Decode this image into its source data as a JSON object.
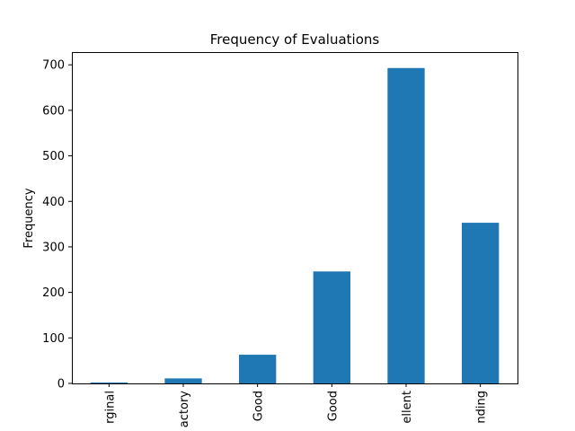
{
  "chart_data": {
    "type": "bar",
    "title": "Frequency of Evaluations",
    "xlabel": "",
    "ylabel": "Frequency",
    "categories": [
      "rginal",
      "actory",
      "Good",
      "Good",
      "ellent",
      "nding"
    ],
    "values": [
      2,
      11,
      63,
      246,
      693,
      353
    ],
    "ylim": [
      0,
      728
    ],
    "yticks": [
      0,
      100,
      200,
      300,
      400,
      500,
      600,
      700
    ],
    "bar_color": "#1f77b4",
    "grid": false,
    "legend": "none"
  }
}
